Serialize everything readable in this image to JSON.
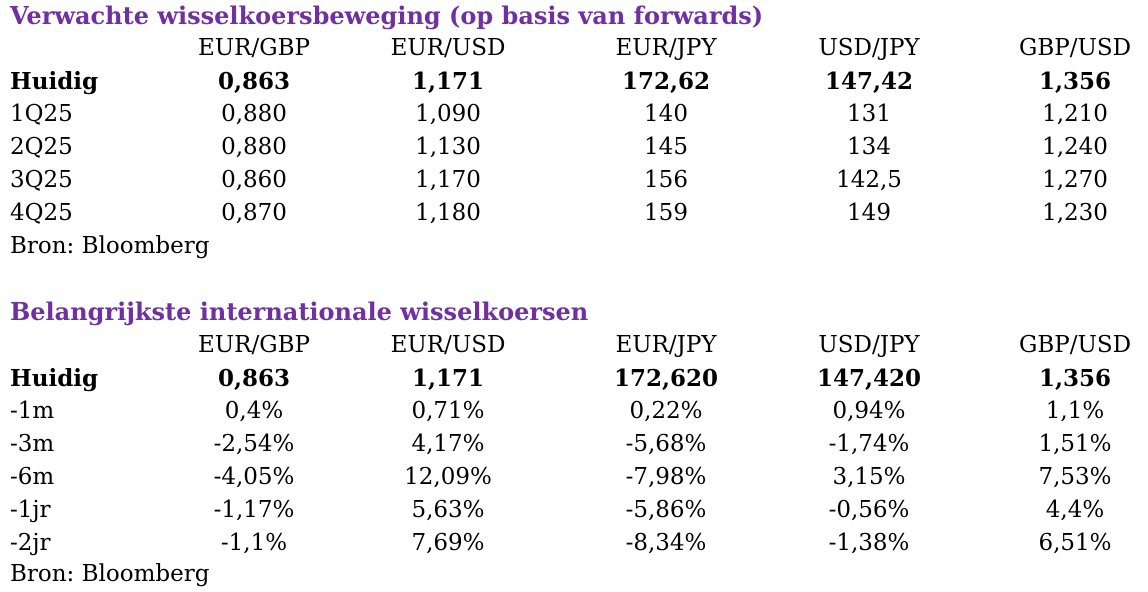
{
  "section1": {
    "title": "Verwachte wisselkoersbeweging (op basis van forwards)",
    "headers": [
      "EUR/GBP",
      "EUR/USD",
      "EUR/JPY",
      "USD/JPY",
      "GBP/USD"
    ],
    "rows": [
      {
        "label": "Huidig",
        "values": [
          "0,863",
          "1,171",
          "172,62",
          "147,42",
          "1,356"
        ]
      },
      {
        "label": "1Q25",
        "values": [
          "0,880",
          "1,090",
          "140",
          "131",
          "1,210"
        ]
      },
      {
        "label": "2Q25",
        "values": [
          "0,880",
          "1,130",
          "145",
          "134",
          "1,240"
        ]
      },
      {
        "label": "3Q25",
        "values": [
          "0,860",
          "1,170",
          "156",
          "142,5",
          "1,270"
        ]
      },
      {
        "label": "4Q25",
        "values": [
          "0,870",
          "1,180",
          "159",
          "149",
          "1,230"
        ]
      }
    ],
    "source": "Bron: Bloomberg"
  },
  "section2": {
    "title": "Belangrijkste internationale wisselkoersen",
    "headers": [
      "EUR/GBP",
      "EUR/USD",
      "EUR/JPY",
      "USD/JPY",
      "GBP/USD"
    ],
    "rows": [
      {
        "label": "Huidig",
        "values": [
          "0,863",
          "1,171",
          "172,620",
          "147,420",
          "1,356"
        ]
      },
      {
        "label": "-1m",
        "values": [
          "0,4%",
          "0,71%",
          "0,22%",
          "0,94%",
          "1,1%"
        ]
      },
      {
        "label": "-3m",
        "values": [
          "-2,54%",
          "4,17%",
          "-5,68%",
          "-1,74%",
          "1,51%"
        ]
      },
      {
        "label": "-6m",
        "values": [
          "-4,05%",
          "12,09%",
          "-7,98%",
          "3,15%",
          "7,53%"
        ]
      },
      {
        "label": "-1jr",
        "values": [
          "-1,17%",
          "5,63%",
          "-5,86%",
          "-0,56%",
          "4,4%"
        ]
      },
      {
        "label": "-2jr",
        "values": [
          "-1,1%",
          "7,69%",
          "-8,34%",
          "-1,38%",
          "6,51%"
        ]
      }
    ],
    "source": "Bron: Bloomberg"
  }
}
